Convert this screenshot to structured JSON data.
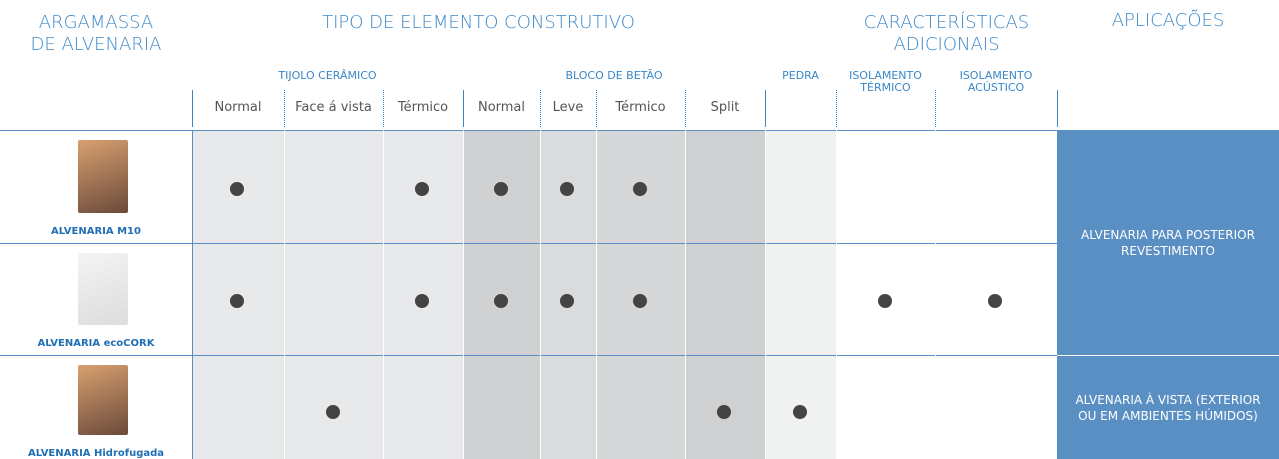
{
  "header": {
    "product": "ARGAMASSA DE ALVENARIA",
    "element_type": "TIPO DE ELEMENTO CONSTRUTIVO",
    "additional": "CARACTERÍSTICAS ADICIONAIS",
    "applications": "APLICAÇÕES"
  },
  "groups": [
    {
      "label": "TIJOLO CERÂMICO",
      "columns": [
        "Normal",
        "Face á vista",
        "Térmico"
      ]
    },
    {
      "label": "BLOCO DE BETÃO",
      "columns": [
        "Normal",
        "Leve",
        "Térmico",
        "Split"
      ]
    },
    {
      "label": "PEDRA",
      "columns": []
    },
    {
      "label": "ISOLAMENTO TÉRMICO",
      "columns": []
    },
    {
      "label": "ISOLAMENTO ACÚSTICO",
      "columns": []
    }
  ],
  "rows": [
    {
      "product": "ALVENARIA M10",
      "marks": [
        true,
        false,
        true,
        true,
        true,
        true,
        false,
        false,
        false,
        false
      ]
    },
    {
      "product": "ALVENARIA ecoCORK",
      "marks": [
        true,
        false,
        true,
        true,
        true,
        true,
        false,
        false,
        true,
        true
      ]
    },
    {
      "product": "ALVENARIA Hidrofugada",
      "marks": [
        false,
        true,
        false,
        false,
        false,
        false,
        true,
        true,
        false,
        false
      ]
    }
  ],
  "applications": [
    "ALVENARIA PARA POSTERIOR REVESTIMENTO",
    "ALVENARIA À VISTA (EXTERIOR OU EM AMBIENTES HÚMIDOS)"
  ]
}
